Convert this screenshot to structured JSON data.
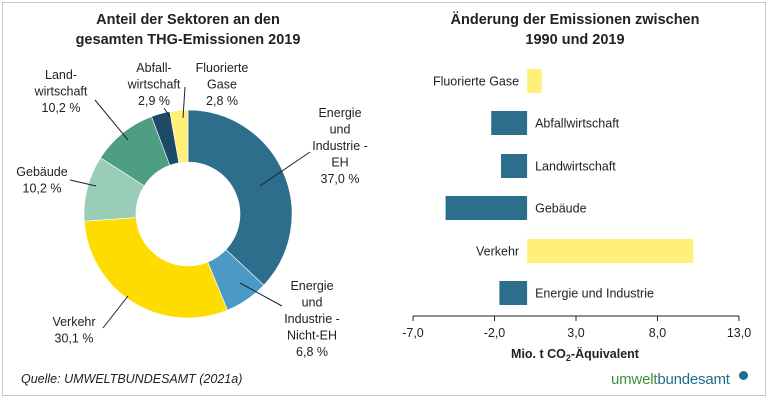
{
  "colors": {
    "energie_eh": "#2c6e8c",
    "energie_nicht_eh": "#4b9ac6",
    "verkehr": "#ffdc00",
    "gebaeude": "#99cdb7",
    "landwirtschaft": "#4d9e82",
    "abfall": "#1e4a66",
    "fluorierte": "#fff07a",
    "bar_dark": "#2c6e8c",
    "bar_yellow": "#fff07a"
  },
  "chart_data": [
    {
      "type": "pie",
      "title_line1": "Anteil der Sektoren an den",
      "title_line2": "gesamten THG-Emissionen 2019",
      "slices": [
        {
          "key": "energie_eh",
          "lines": [
            "Energie",
            "und",
            "Industrie -",
            "EH"
          ],
          "value_label": "37,0 %",
          "value": 37.0
        },
        {
          "key": "energie_nicht_eh",
          "lines": [
            "Energie",
            "und",
            "Industrie -",
            "Nicht-EH"
          ],
          "value_label": "6,8 %",
          "value": 6.8
        },
        {
          "key": "verkehr",
          "lines": [
            "Verkehr"
          ],
          "value_label": "30,1 %",
          "value": 30.1
        },
        {
          "key": "gebaeude",
          "lines": [
            "Gebäude"
          ],
          "value_label": "10,2 %",
          "value": 10.2
        },
        {
          "key": "landwirtschaft",
          "lines": [
            "Land-",
            "wirtschaft"
          ],
          "value_label": "10,2 %",
          "value": 10.2
        },
        {
          "key": "abfall",
          "lines": [
            "Abfall-",
            "wirtschaft"
          ],
          "value_label": "2,9 %",
          "value": 2.9
        },
        {
          "key": "fluorierte",
          "lines": [
            "Fluorierte",
            "Gase"
          ],
          "value_label": "2,8 %",
          "value": 2.8
        }
      ]
    },
    {
      "type": "bar",
      "orientation": "horizontal",
      "title_line1": "Änderung der Emissionen zwischen",
      "title_line2": "1990 und 2019",
      "xlim": [
        -7.0,
        13.0
      ],
      "xticks": [
        "-7,0",
        "-2,0",
        "3,0",
        "8,0",
        "13,0"
      ],
      "xtick_values": [
        -7.0,
        -2.0,
        3.0,
        8.0,
        13.0
      ],
      "xlabel_main": "Mio. t CO",
      "xlabel_sub": "2",
      "xlabel_rest": "-Äquivalent",
      "categories": [
        "Fluorierte Gase",
        "Abfallwirtschaft",
        "Landwirtschaft",
        "Gebäude",
        "Verkehr",
        "Energie und Industrie"
      ],
      "values": [
        0.9,
        -2.2,
        -1.6,
        -5.0,
        10.2,
        -1.7
      ],
      "bar_color_keys": [
        "bar_yellow",
        "bar_dark",
        "bar_dark",
        "bar_dark",
        "bar_yellow",
        "bar_dark"
      ]
    }
  ],
  "footer": {
    "source": "Quelle: UMWELTBUNDESAMT (2021a)",
    "logo_part1": "umwelt",
    "logo_part2": "bundesamt"
  }
}
